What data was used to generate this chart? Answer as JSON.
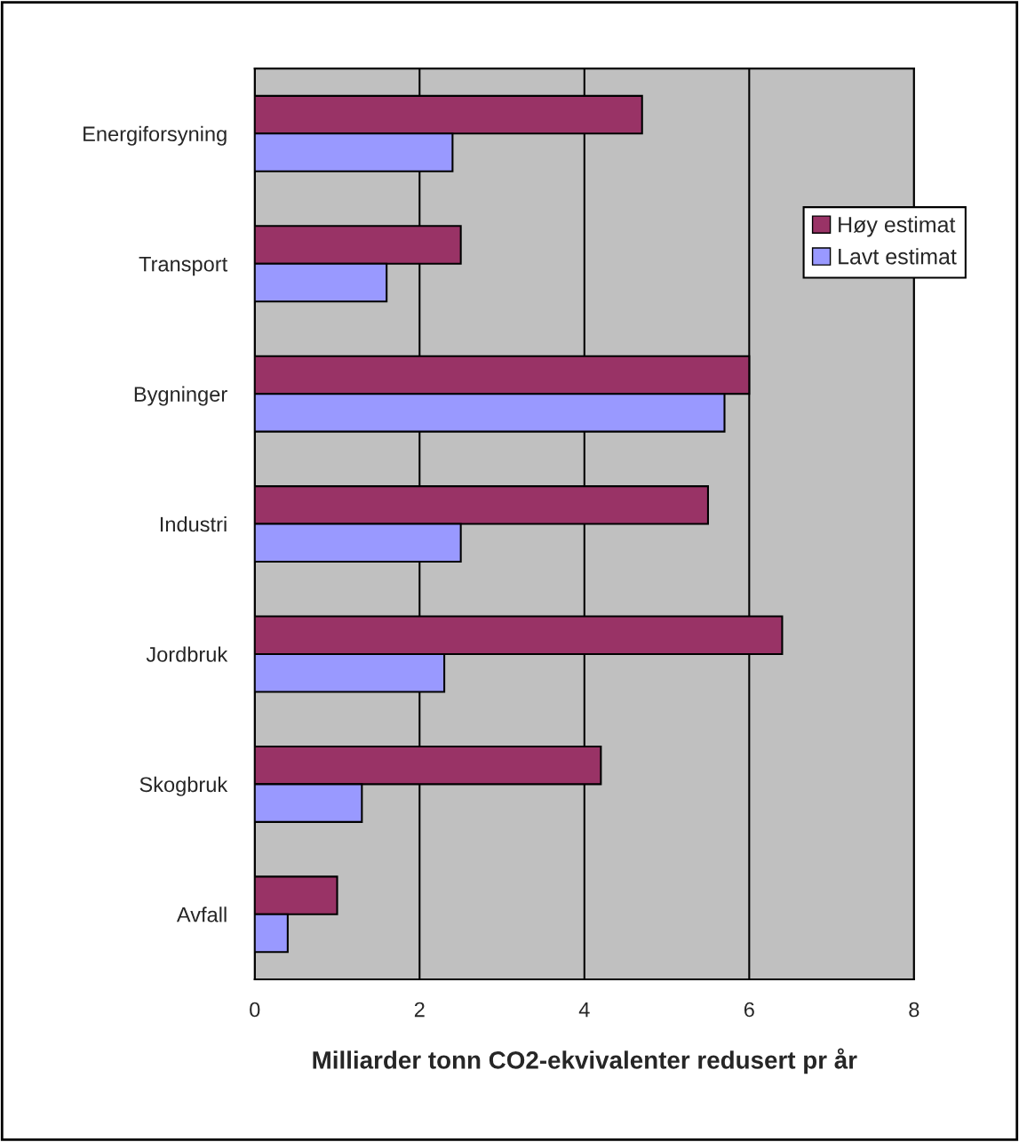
{
  "chart_data": {
    "type": "bar",
    "orientation": "horizontal",
    "categories": [
      "Energiforsyning",
      "Transport",
      "Bygninger",
      "Industri",
      "Jordbruk",
      "Skogbruk",
      "Avfall"
    ],
    "series": [
      {
        "name": "Høy estimat",
        "color": "#993366",
        "values": [
          4.7,
          2.5,
          6.0,
          5.5,
          6.4,
          4.2,
          1.0
        ]
      },
      {
        "name": "Lavt estimat",
        "color": "#9999ff",
        "values": [
          2.4,
          1.6,
          5.7,
          2.5,
          2.3,
          1.3,
          0.4
        ]
      }
    ],
    "xlabel": "Milliarder tonn CO2-ekvivalenter redusert pr år",
    "xlim": [
      0,
      8
    ],
    "xticks": [
      0,
      2,
      4,
      6,
      8
    ],
    "grid": "x",
    "legend": "top right"
  }
}
